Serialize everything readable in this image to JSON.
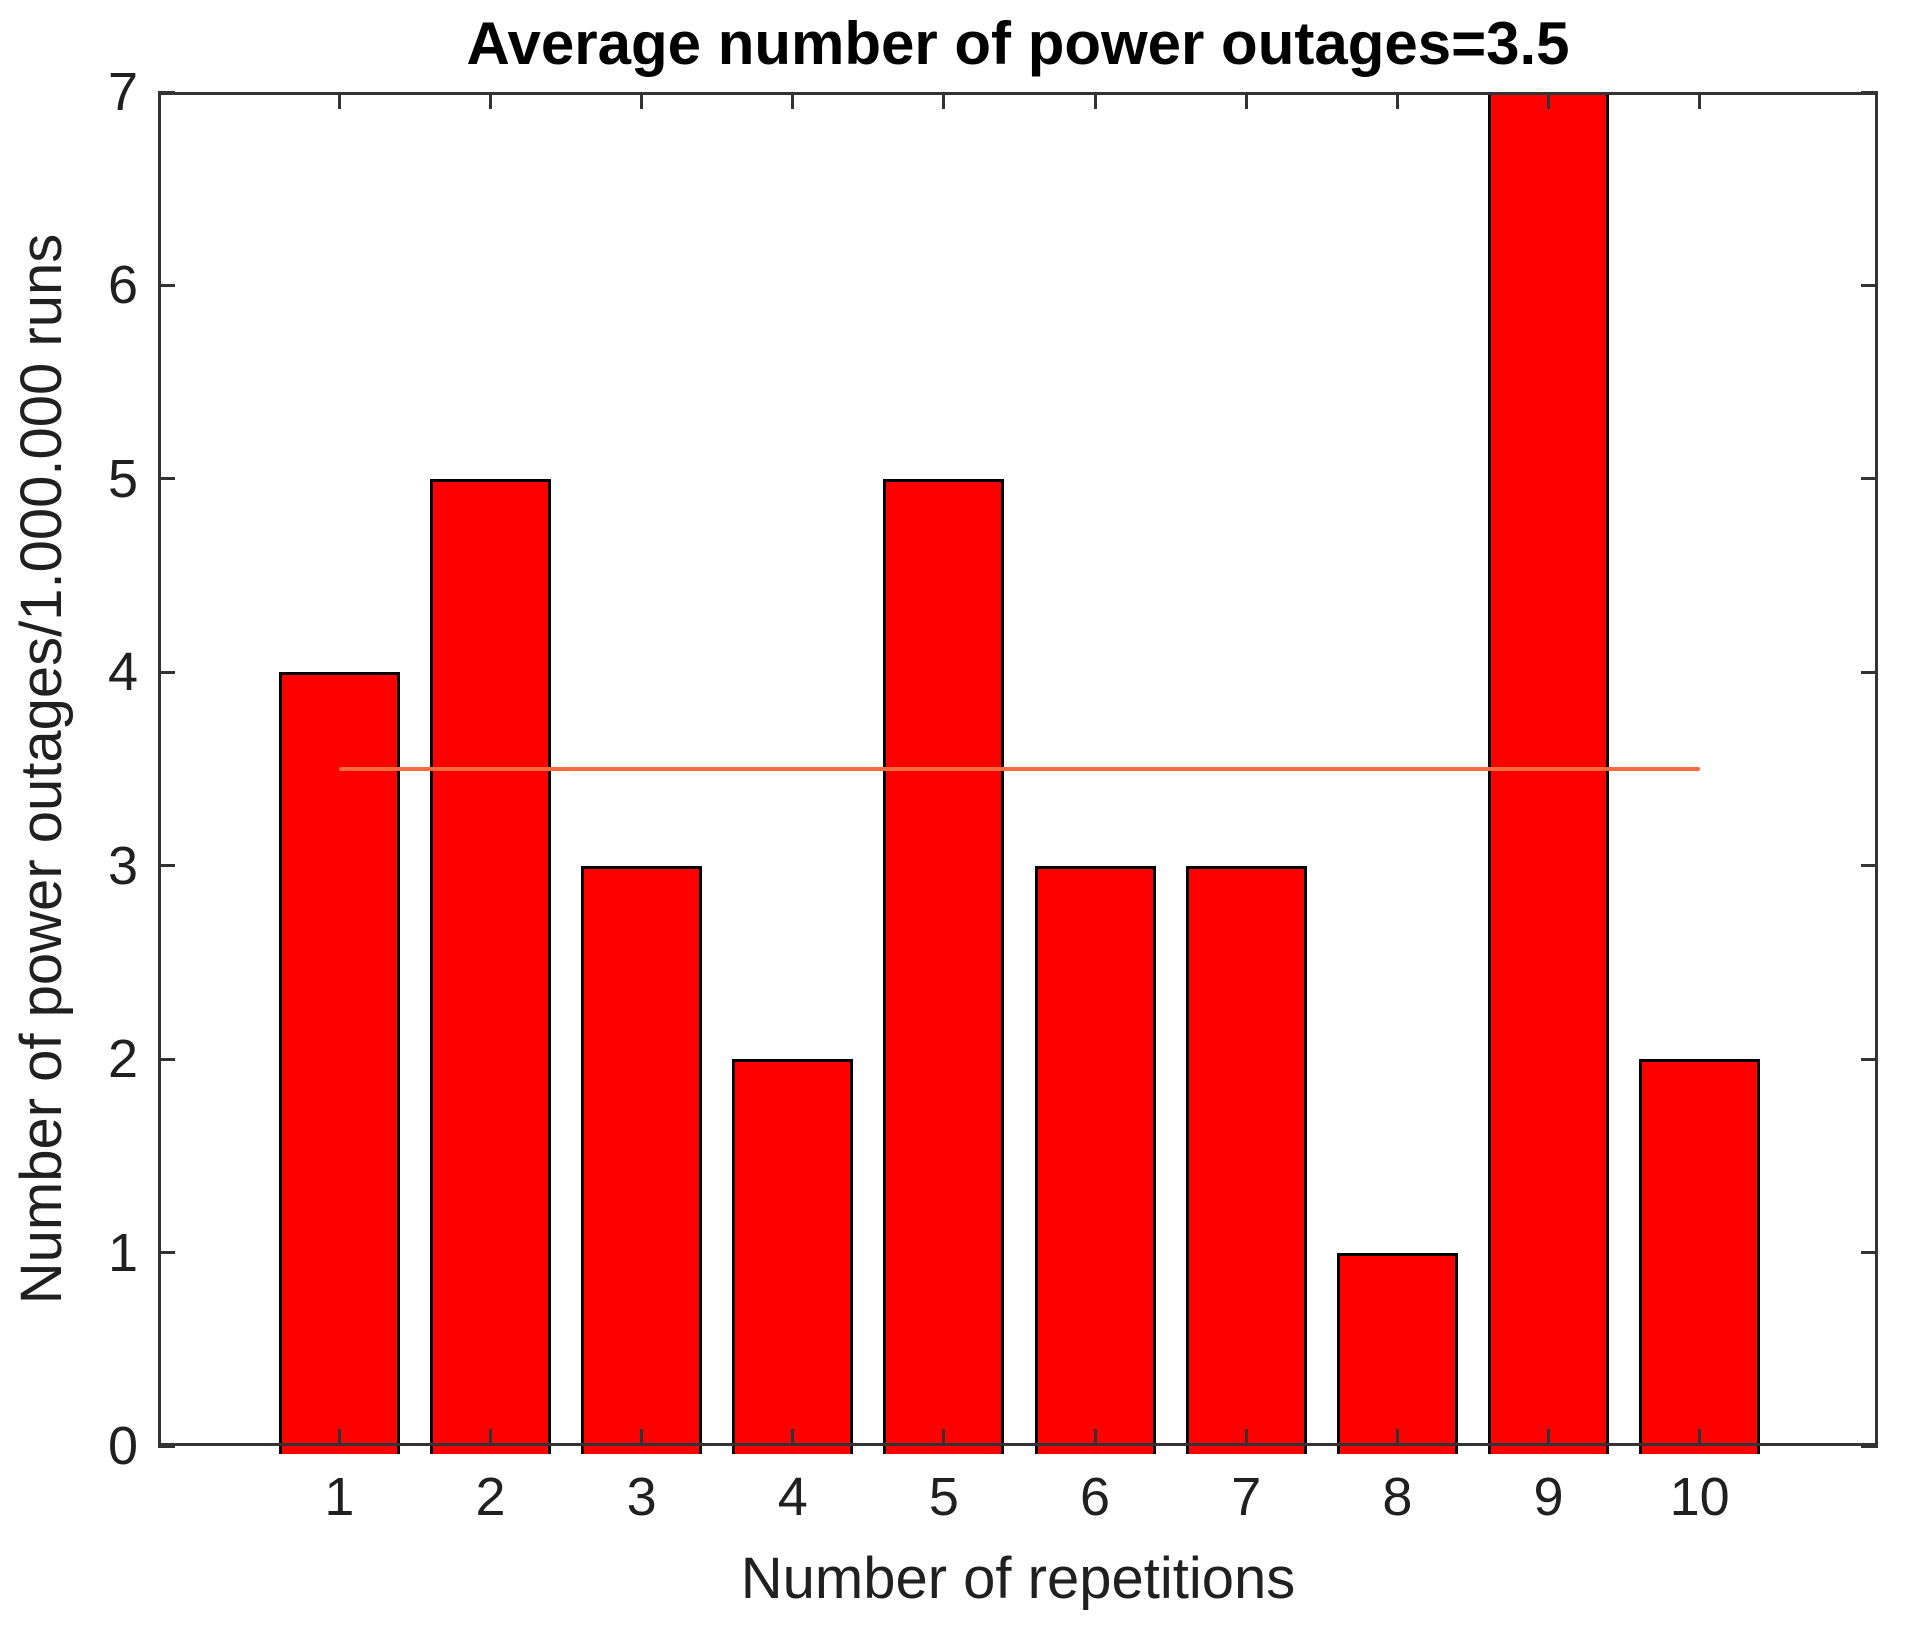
{
  "chart_data": {
    "type": "bar",
    "title": "Average number of power outages=3.5",
    "xlabel": "Number of repetitions",
    "ylabel": "Number of power outages/1.000.000 runs",
    "categories": [
      1,
      2,
      3,
      4,
      5,
      6,
      7,
      8,
      9,
      10
    ],
    "values": [
      4,
      5,
      3,
      2,
      5,
      3,
      3,
      1,
      7,
      2
    ],
    "average": 3.5,
    "mean_line": {
      "y": 3.5,
      "x_start": 1,
      "x_end": 10,
      "color": "#f96b3c"
    },
    "xlim": [
      -0.2,
      11.18
    ],
    "ylim": [
      0,
      7
    ],
    "yticks": [
      0,
      1,
      2,
      3,
      4,
      5,
      6,
      7
    ],
    "xticks": [
      1,
      2,
      3,
      4,
      5,
      6,
      7,
      8,
      9,
      10
    ],
    "bar_width_units": 0.8,
    "grid": false,
    "legend": "none",
    "colors": {
      "bar_fill": "#ff0000",
      "bar_edge": "#000000",
      "axis": "#333333",
      "text": "#202020",
      "background": "#ffffff"
    }
  }
}
